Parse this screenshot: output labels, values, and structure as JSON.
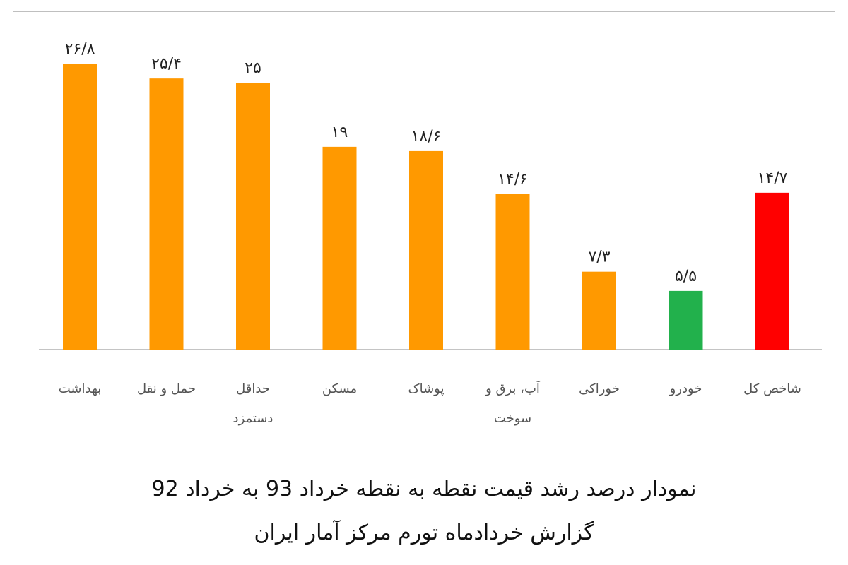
{
  "chart_data": {
    "type": "bar",
    "categories": [
      "بهداشت",
      "حمل و نقل",
      "حداقل دستمزد",
      "مسکن",
      "پوشاک",
      "آب، برق و سوخت",
      "خوراکی",
      "خودرو",
      "شاخص کل"
    ],
    "category_lines": [
      [
        "بهداشت"
      ],
      [
        "حمل و نقل"
      ],
      [
        "حداقل",
        "دستمزد"
      ],
      [
        "مسکن"
      ],
      [
        "پوشاک"
      ],
      [
        "آب، برق و",
        "سوخت"
      ],
      [
        "خوراکی"
      ],
      [
        "خودرو"
      ],
      [
        "شاخص کل"
      ]
    ],
    "values": [
      26.8,
      25.4,
      25,
      19,
      18.6,
      14.6,
      7.3,
      5.5,
      14.7
    ],
    "value_labels": [
      "۲۶/۸",
      "۲۵/۴",
      "۲۵",
      "۱۹",
      "۱۸/۶",
      "۱۴/۶",
      "۷/۳",
      "۵/۵",
      "۱۴/۷"
    ],
    "bar_colors": [
      "#ff9900",
      "#ff9900",
      "#ff9900",
      "#ff9900",
      "#ff9900",
      "#ff9900",
      "#ff9900",
      "#22b14c",
      "#ff0000"
    ],
    "ylim": [
      0,
      30
    ],
    "grid": false,
    "legend": "none"
  },
  "caption": {
    "line1": "نمودار درصد رشد قیمت نقطه به نقطه خرداد 93 به خرداد 92",
    "line2": "گزارش خردادماه تورم مرکز آمار ایران"
  }
}
